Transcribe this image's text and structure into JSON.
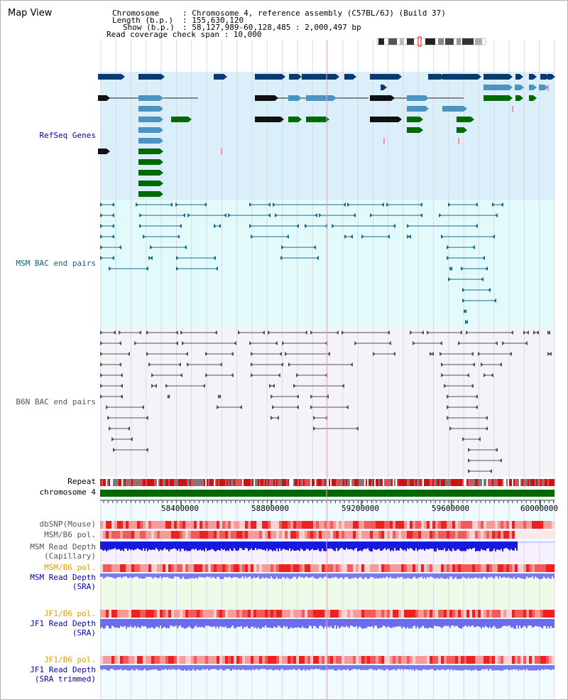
{
  "title": "Map View",
  "header": {
    "chromosome_key": "Chromosome",
    "chromosome_val": ": Chromosome 4, reference assembly (C57BL/6J) (Build 37)",
    "length_key": "Length (b.p.)",
    "length_val": ": 155,630,120",
    "show_key": "Show (b.p.)",
    "show_val": ": 58,127,989-60,128,485 : 2,000,497 bp",
    "coverage_label": "Read coverage check span : 10,000"
  },
  "tracks": {
    "refseq": "RefSeq Genes",
    "msm_bac": "MSM BAC end pairs",
    "b6n_bac": "B6N BAC end pairs",
    "repeat": "Repeat",
    "chromosome": "chromosome 4",
    "dbsnp": "dbSNP(Mouse)",
    "msm_b6_pol_1": "MSM/B6 pol.",
    "msm_depth_cap_1": "MSM Read Depth",
    "msm_depth_cap_2": "(Capillary)",
    "msm_b6_pol_2": "MSM/B6 pol.",
    "msm_depth_sra_1": "MSM Read Depth",
    "msm_depth_sra_2": "(SRA)",
    "jf1_pol_1": "JF1/B6 pol.",
    "jf1_depth_1": "JF1 Read Depth",
    "jf1_depth_2": "(SRA)",
    "jf1_pol_2": "JF1/B6 pol.",
    "jf1_depth_trim_1": "JF1 Read Depth",
    "jf1_depth_trim_2": "(SRA trimmed)"
  },
  "axis": {
    "ticks": [
      "58400000",
      "58800000",
      "59200000",
      "59600000",
      "60000000"
    ]
  },
  "colors": {
    "refseq_bg": "#daeffa",
    "msm_bg": "#e3fafb",
    "b6n_bg": "#f4f4f8",
    "gene_dark": "#0b3a6e",
    "gene_mid": "#4b93c0",
    "gene_green": "#006a00",
    "msm_line": "#1e6a90",
    "b6n_line": "#555555",
    "chrom_green": "#006a00"
  }
}
